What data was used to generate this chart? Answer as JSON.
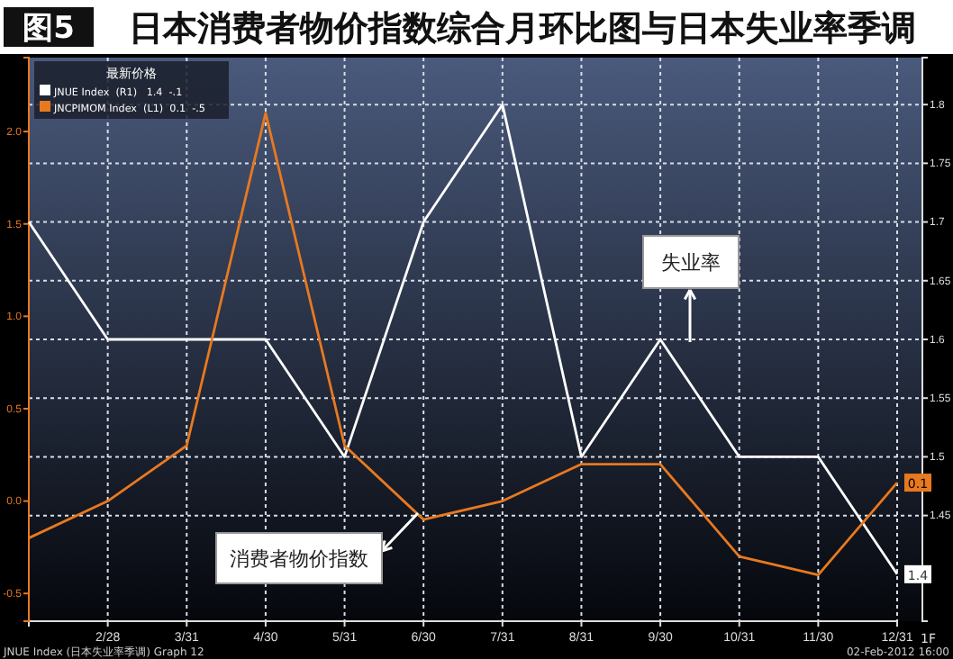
{
  "chart_data": {
    "type": "line",
    "title": "图5",
    "subtitle": "日本消费者物价指数综合月环比图与日本失业率季调",
    "categories": [
      null,
      "2/28",
      "3/31",
      "4/30",
      "5/31",
      "6/30",
      "7/31",
      "8/31",
      "9/30",
      "10/31",
      "11/30",
      "12/31"
    ],
    "legend_title": "最新价格",
    "series": [
      {
        "name": "JNUE Index  (R1)   1.4  -.1",
        "color": "#ffffff",
        "axis": "y2",
        "values": [
          1.7,
          1.6,
          1.6,
          1.6,
          1.5,
          1.7,
          1.8,
          1.5,
          1.6,
          1.5,
          1.5,
          1.4
        ],
        "value_labels": [
          null,
          null,
          null,
          null,
          null,
          null,
          null,
          null,
          null,
          null,
          null,
          "1.4"
        ]
      },
      {
        "name": "JNCPIMOM Index  (L1)  0.1  -.5",
        "color": "#e8791f",
        "values": [
          -0.2,
          0.0,
          0.3,
          2.1,
          0.3,
          -0.1,
          0.0,
          0.2,
          0.2,
          -0.3,
          -0.4,
          0.1
        ],
        "value_labels": [
          null,
          null,
          null,
          null,
          null,
          null,
          null,
          null,
          null,
          null,
          null,
          "0.1"
        ]
      }
    ],
    "ylim": [
      -0.65,
      2.4
    ],
    "yticks": [
      -0.5,
      {
        "value": 0,
        "label": "0.0"
      },
      0.5,
      {
        "value": 1,
        "label": "1.0"
      },
      1.5,
      {
        "value": 2,
        "label": "2.0"
      }
    ],
    "y2lim": [
      1.36,
      1.84
    ],
    "y2ticks": [
      1.45,
      1.5,
      1.55,
      1.6,
      1.65,
      1.7,
      1.75,
      1.8
    ],
    "grid": true,
    "legend": "top left",
    "line_style": "solid",
    "marker": "none",
    "annotations": [
      "失业率",
      "消费者物价指数",
      "JNUE Index (日本失业率季调) Graph 12",
      "02-Feb-2012 16:00",
      "1F"
    ]
  }
}
